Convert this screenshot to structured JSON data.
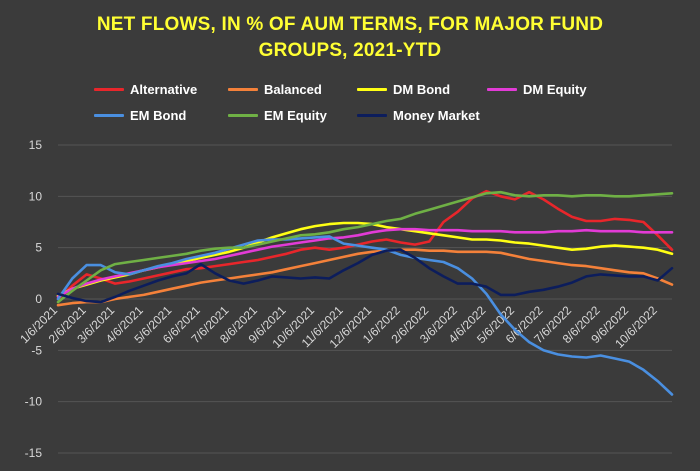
{
  "title_line1": "NET FLOWS, IN % OF AUM TERMS, FOR MAJOR FUND",
  "title_line2": "GROUPS, 2021-YTD",
  "chart_data": {
    "type": "line",
    "title": "NET FLOWS, IN % OF AUM TERMS, FOR MAJOR FUND GROUPS, 2021-YTD",
    "xlabel": "",
    "ylabel": "",
    "ylim": [
      -15,
      15
    ],
    "yticks": [
      -15,
      -10,
      -5,
      0,
      5,
      10,
      15
    ],
    "x_tick_labels": [
      "1/6/2021",
      "2/6/2021",
      "3/6/2021",
      "4/6/2021",
      "5/6/2021",
      "6/6/2021",
      "7/6/2021",
      "8/6/2021",
      "9/6/2021",
      "10/6/2021",
      "11/6/2021",
      "12/6/2021",
      "1/6/2022",
      "2/6/2022",
      "3/6/2022",
      "4/6/2022",
      "5/6/2022",
      "6/6/2022",
      "7/6/2022",
      "8/6/2022",
      "9/6/2022",
      "10/6/2022"
    ],
    "x": [
      0,
      0.5,
      1,
      1.5,
      2,
      2.5,
      3,
      3.5,
      4,
      4.5,
      5,
      5.5,
      6,
      6.5,
      7,
      7.5,
      8,
      8.5,
      9,
      9.5,
      10,
      10.5,
      11,
      11.5,
      12,
      12.5,
      13,
      13.5,
      14,
      14.5,
      15,
      15.5,
      16,
      16.5,
      17,
      17.5,
      18,
      18.5,
      19,
      19.5,
      20,
      20.5,
      21,
      21.5
    ],
    "grid": true,
    "legend_position": "top",
    "series": [
      {
        "name": "Alternative",
        "color": "#e8262b",
        "values": [
          0,
          1.3,
          2.4,
          2.0,
          1.5,
          1.7,
          2.0,
          2.3,
          2.6,
          2.9,
          3.0,
          3.2,
          3.4,
          3.6,
          3.8,
          4.1,
          4.4,
          4.8,
          5.0,
          4.8,
          5.0,
          5.3,
          5.6,
          5.8,
          5.5,
          5.3,
          5.6,
          7.5,
          8.5,
          9.8,
          10.5,
          10.0,
          9.7,
          10.4,
          9.7,
          8.8,
          8.0,
          7.6,
          7.6,
          7.8,
          7.7,
          7.5,
          6.2,
          4.8
        ]
      },
      {
        "name": "Balanced",
        "color": "#f4813a",
        "values": [
          -0.6,
          -0.4,
          -0.3,
          -0.3,
          0.0,
          0.2,
          0.4,
          0.7,
          1.0,
          1.3,
          1.6,
          1.8,
          2.0,
          2.2,
          2.4,
          2.6,
          2.9,
          3.2,
          3.5,
          3.8,
          4.1,
          4.4,
          4.6,
          4.7,
          4.8,
          4.8,
          4.7,
          4.7,
          4.6,
          4.6,
          4.6,
          4.5,
          4.2,
          3.9,
          3.7,
          3.5,
          3.3,
          3.2,
          3.0,
          2.8,
          2.6,
          2.5,
          2.0,
          1.4
        ]
      },
      {
        "name": "DM Bond",
        "color": "#ffff14",
        "values": [
          0.3,
          1.0,
          1.4,
          1.8,
          2.1,
          2.4,
          2.8,
          3.1,
          3.4,
          3.7,
          4.0,
          4.3,
          4.6,
          5.0,
          5.5,
          6.0,
          6.4,
          6.8,
          7.1,
          7.3,
          7.4,
          7.4,
          7.3,
          7.0,
          6.8,
          6.6,
          6.4,
          6.2,
          6.0,
          5.8,
          5.8,
          5.7,
          5.5,
          5.4,
          5.2,
          5.0,
          4.8,
          4.9,
          5.1,
          5.2,
          5.1,
          5.0,
          4.8,
          4.4
        ]
      },
      {
        "name": "DM Equity",
        "color": "#e23bd6",
        "values": [
          0.2,
          1.0,
          1.5,
          1.9,
          2.2,
          2.5,
          2.8,
          3.1,
          3.3,
          3.5,
          3.7,
          3.9,
          4.2,
          4.5,
          4.8,
          5.1,
          5.3,
          5.5,
          5.7,
          5.9,
          6.0,
          6.2,
          6.5,
          6.7,
          6.8,
          6.8,
          6.7,
          6.7,
          6.7,
          6.6,
          6.6,
          6.6,
          6.5,
          6.5,
          6.5,
          6.6,
          6.6,
          6.7,
          6.6,
          6.6,
          6.6,
          6.5,
          6.5,
          6.5
        ]
      },
      {
        "name": "EM Bond",
        "color": "#4a8fe0",
        "values": [
          0.0,
          2.0,
          3.3,
          3.3,
          2.6,
          2.4,
          2.8,
          3.2,
          3.5,
          3.9,
          4.2,
          4.5,
          4.9,
          5.3,
          5.7,
          5.8,
          5.8,
          5.9,
          6.0,
          6.1,
          5.4,
          5.2,
          5.0,
          4.8,
          4.3,
          4.0,
          3.8,
          3.6,
          3.0,
          2.0,
          0.5,
          -1.5,
          -3.0,
          -4.2,
          -5.0,
          -5.4,
          -5.6,
          -5.7,
          -5.5,
          -5.8,
          -6.1,
          -6.9,
          -8.0,
          -9.3
        ]
      },
      {
        "name": "EM Equity",
        "color": "#6fb045",
        "values": [
          -0.3,
          0.8,
          1.8,
          2.8,
          3.4,
          3.6,
          3.8,
          4.0,
          4.2,
          4.4,
          4.7,
          4.9,
          5.0,
          5.0,
          5.3,
          5.6,
          5.9,
          6.2,
          6.3,
          6.5,
          6.8,
          7.0,
          7.3,
          7.6,
          7.8,
          8.3,
          8.7,
          9.1,
          9.5,
          9.9,
          10.3,
          10.4,
          10.1,
          10.0,
          10.1,
          10.1,
          10.0,
          10.1,
          10.1,
          10.0,
          10.0,
          10.1,
          10.2,
          10.3
        ]
      },
      {
        "name": "Money Market",
        "color": "#0c1d5c",
        "values": [
          0.5,
          0.1,
          -0.2,
          -0.3,
          0.2,
          0.8,
          1.3,
          1.8,
          2.2,
          2.5,
          3.4,
          2.5,
          1.8,
          1.5,
          1.8,
          2.2,
          2.1,
          2.0,
          2.1,
          2.0,
          2.8,
          3.5,
          4.3,
          4.7,
          4.8,
          4.0,
          3.0,
          2.2,
          1.5,
          1.5,
          1.2,
          0.4,
          0.4,
          0.7,
          0.9,
          1.2,
          1.6,
          2.2,
          2.4,
          2.3,
          2.2,
          2.2,
          1.8,
          3.0
        ]
      }
    ]
  }
}
